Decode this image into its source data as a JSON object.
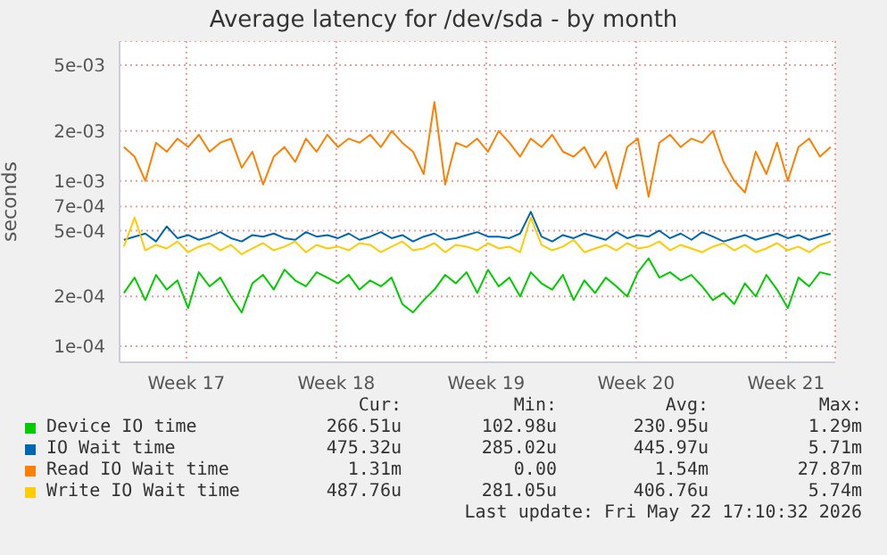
{
  "chart_data": {
    "type": "line",
    "title": "Average latency for /dev/sda - by month",
    "ylabel": "seconds",
    "log": true,
    "grid": true,
    "legend": "bottom",
    "marker": "none",
    "line_style": "solid",
    "xlim": [
      "2026-04-19T07:10",
      "2026-05-22T17:10"
    ],
    "xticks": [
      {
        "value": "2026-04-22T10:00",
        "label": "Week 17"
      },
      {
        "value": "2026-04-29T10:00",
        "label": "Week 18"
      },
      {
        "value": "2026-05-06T10:00",
        "label": "Week 19"
      },
      {
        "value": "2026-05-13T10:00",
        "label": "Week 20"
      },
      {
        "value": "2026-05-20T10:00",
        "label": "Week 21"
      }
    ],
    "ylim": [
      8e-05,
      0.007
    ],
    "yticks": [
      {
        "value": 0.005,
        "label": "5e-03"
      },
      {
        "value": 0.002,
        "label": "2e-03"
      },
      {
        "value": 0.001,
        "label": "1e-03"
      },
      {
        "value": 0.0007,
        "label": "7e-04"
      },
      {
        "value": 0.0005,
        "label": "5e-04"
      },
      {
        "value": 0.0002,
        "label": "2e-04"
      },
      {
        "value": 0.0001,
        "label": "1e-04"
      }
    ],
    "x": [
      "2026-04-19T12:00",
      "2026-04-20T00:00",
      "2026-04-20T12:00",
      "2026-04-21T00:00",
      "2026-04-21T12:00",
      "2026-04-22T00:00",
      "2026-04-22T12:00",
      "2026-04-23T00:00",
      "2026-04-23T12:00",
      "2026-04-24T00:00",
      "2026-04-24T12:00",
      "2026-04-25T00:00",
      "2026-04-25T12:00",
      "2026-04-26T00:00",
      "2026-04-26T12:00",
      "2026-04-27T00:00",
      "2026-04-27T12:00",
      "2026-04-28T00:00",
      "2026-04-28T12:00",
      "2026-04-29T00:00",
      "2026-04-29T12:00",
      "2026-04-30T00:00",
      "2026-04-30T12:00",
      "2026-05-01T00:00",
      "2026-05-01T12:00",
      "2026-05-02T00:00",
      "2026-05-02T12:00",
      "2026-05-03T00:00",
      "2026-05-03T12:00",
      "2026-05-04T00:00",
      "2026-05-04T12:00",
      "2026-05-05T00:00",
      "2026-05-05T12:00",
      "2026-05-06T00:00",
      "2026-05-06T12:00",
      "2026-05-07T00:00",
      "2026-05-07T12:00",
      "2026-05-08T00:00",
      "2026-05-08T12:00",
      "2026-05-09T00:00",
      "2026-05-09T12:00",
      "2026-05-10T00:00",
      "2026-05-10T12:00",
      "2026-05-11T00:00",
      "2026-05-11T12:00",
      "2026-05-12T00:00",
      "2026-05-12T12:00",
      "2026-05-13T00:00",
      "2026-05-13T12:00",
      "2026-05-14T00:00",
      "2026-05-14T12:00",
      "2026-05-15T00:00",
      "2026-05-15T12:00",
      "2026-05-16T00:00",
      "2026-05-16T12:00",
      "2026-05-17T00:00",
      "2026-05-17T12:00",
      "2026-05-18T00:00",
      "2026-05-18T12:00",
      "2026-05-19T00:00",
      "2026-05-19T12:00",
      "2026-05-20T00:00",
      "2026-05-20T12:00",
      "2026-05-21T00:00",
      "2026-05-21T12:00",
      "2026-05-22T00:00",
      "2026-05-22T12:00"
    ],
    "series": [
      {
        "name": "Device IO time",
        "color": "#00cc00",
        "values": [
          0.00021,
          0.00026,
          0.00019,
          0.00027,
          0.00022,
          0.00025,
          0.00017,
          0.00028,
          0.00023,
          0.00026,
          0.0002,
          0.00016,
          0.00024,
          0.00027,
          0.00022,
          0.00029,
          0.00025,
          0.00023,
          0.00028,
          0.00026,
          0.00024,
          0.00027,
          0.00022,
          0.00025,
          0.00023,
          0.00026,
          0.00018,
          0.00016,
          0.00019,
          0.00022,
          0.00027,
          0.00024,
          0.00028,
          0.00021,
          0.00029,
          0.00023,
          0.00026,
          0.0002,
          0.00028,
          0.00024,
          0.00022,
          0.00027,
          0.00019,
          0.00025,
          0.00021,
          0.00026,
          0.00023,
          0.0002,
          0.00028,
          0.00034,
          0.00026,
          0.00028,
          0.00025,
          0.00027,
          0.00023,
          0.00019,
          0.00021,
          0.00018,
          0.00024,
          0.0002,
          0.00027,
          0.00022,
          0.00017,
          0.00026,
          0.00023,
          0.00028,
          0.00027
        ]
      },
      {
        "name": "IO Wait time",
        "color": "#0066b3",
        "values": [
          0.00044,
          0.00046,
          0.00048,
          0.00043,
          0.00053,
          0.00045,
          0.00047,
          0.00044,
          0.00046,
          0.00049,
          0.00045,
          0.00043,
          0.00047,
          0.00046,
          0.00048,
          0.00045,
          0.00044,
          0.00049,
          0.00046,
          0.00047,
          0.00045,
          0.00048,
          0.00044,
          0.00046,
          0.00049,
          0.00045,
          0.00047,
          0.00043,
          0.00046,
          0.00048,
          0.00044,
          0.00045,
          0.00047,
          0.00049,
          0.00046,
          0.00046,
          0.00045,
          0.00048,
          0.00065,
          0.00046,
          0.00043,
          0.00047,
          0.00045,
          0.00048,
          0.00046,
          0.00044,
          0.00049,
          0.00045,
          0.00047,
          0.00046,
          0.0005,
          0.00045,
          0.00048,
          0.00044,
          0.00049,
          0.00046,
          0.00043,
          0.00045,
          0.00047,
          0.00044,
          0.00046,
          0.00048,
          0.00045,
          0.00047,
          0.00044,
          0.00046,
          0.00048
        ]
      },
      {
        "name": "Read IO Wait time",
        "color": "#ff8000",
        "values": [
          0.0016,
          0.0014,
          0.001,
          0.0017,
          0.0015,
          0.0018,
          0.0016,
          0.0019,
          0.0015,
          0.0017,
          0.0018,
          0.0012,
          0.0015,
          0.00095,
          0.0014,
          0.0016,
          0.0013,
          0.0018,
          0.0015,
          0.0019,
          0.0016,
          0.0018,
          0.0017,
          0.0019,
          0.0016,
          0.002,
          0.0017,
          0.0015,
          0.0011,
          0.003,
          0.00095,
          0.0017,
          0.0016,
          0.0018,
          0.0015,
          0.002,
          0.0017,
          0.0014,
          0.0018,
          0.0016,
          0.0019,
          0.0015,
          0.0014,
          0.0016,
          0.0012,
          0.0015,
          0.0009,
          0.0016,
          0.0018,
          0.0008,
          0.0017,
          0.0019,
          0.0016,
          0.0018,
          0.0017,
          0.002,
          0.0013,
          0.001,
          0.00085,
          0.0015,
          0.0011,
          0.0017,
          0.001,
          0.0016,
          0.0018,
          0.0014,
          0.0016
        ]
      },
      {
        "name": "Write IO Wait time",
        "color": "#ffcc00",
        "values": [
          0.0004,
          0.0006,
          0.00038,
          0.00041,
          0.00039,
          0.00043,
          0.00037,
          0.0004,
          0.00042,
          0.00038,
          0.00041,
          0.00036,
          0.00039,
          0.00042,
          0.00038,
          0.0004,
          0.00043,
          0.00037,
          0.00041,
          0.00039,
          0.0004,
          0.00038,
          0.00042,
          0.00041,
          0.00037,
          0.0004,
          0.00043,
          0.00038,
          0.00039,
          0.00042,
          0.00037,
          0.00041,
          0.0004,
          0.00038,
          0.00042,
          0.00039,
          0.0004,
          0.00037,
          0.0006,
          0.00041,
          0.00038,
          0.0004,
          0.00044,
          0.00037,
          0.00039,
          0.00041,
          0.00038,
          0.00042,
          0.00039,
          0.0004,
          0.00043,
          0.00038,
          0.00041,
          0.00039,
          0.00037,
          0.0004,
          0.00042,
          0.00038,
          0.00041,
          0.00037,
          0.00039,
          0.00042,
          0.00038,
          0.0004,
          0.00037,
          0.00041,
          0.00043
        ]
      }
    ],
    "annotations": [
      "Cur:",
      "Min:",
      "Avg:",
      "Max:",
      "266.51u",
      "102.98u",
      "230.95u",
      "1.29m",
      "475.32u",
      "285.02u",
      "445.97u",
      "5.71m",
      "1.31m",
      "0.00",
      "1.54m",
      "27.87m",
      "487.76u",
      "281.05u",
      "406.76u",
      "5.74m",
      "Last update: Fri May 22 17:10:32 2026"
    ]
  }
}
